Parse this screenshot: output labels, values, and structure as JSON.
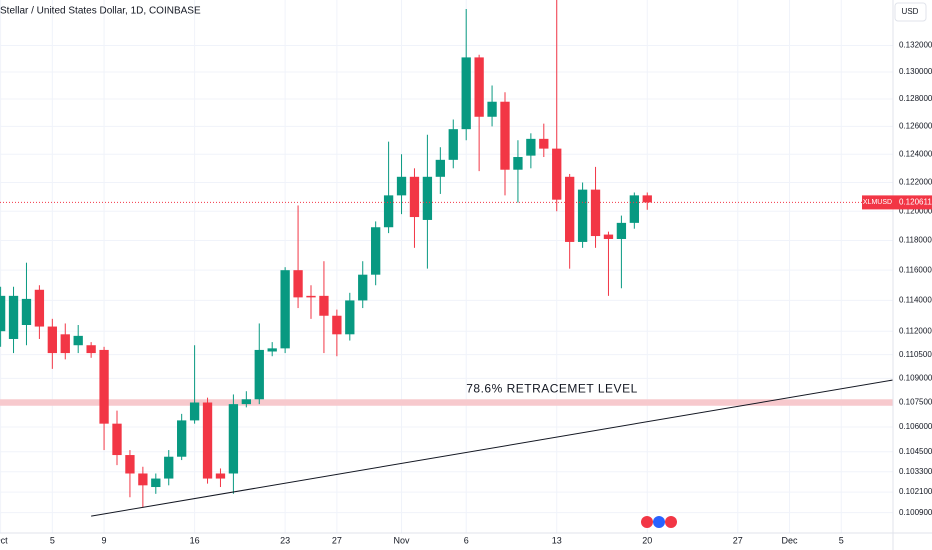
{
  "chart_data": {
    "type": "candlestick",
    "title": "Stellar / United States Dollar, 1D, COINBASE",
    "currency": "USD",
    "symbol": "XLMUSD",
    "log_scale": true,
    "grid": true,
    "up_color": "#089981",
    "down_color": "#f23645",
    "x": [
      "Oct 1",
      "Oct 2",
      "Oct 3",
      "Oct 4",
      "Oct 5",
      "Oct 6",
      "Oct 7",
      "Oct 8",
      "Oct 9",
      "Oct 10",
      "Oct 11",
      "Oct 12",
      "Oct 13",
      "Oct 14",
      "Oct 15",
      "Oct 16",
      "Oct 17",
      "Oct 18",
      "Oct 19",
      "Oct 20",
      "Oct 21",
      "Oct 22",
      "Oct 23",
      "Oct 24",
      "Oct 25",
      "Oct 26",
      "Oct 27",
      "Oct 28",
      "Oct 29",
      "Oct 30",
      "Oct 31",
      "Nov 1",
      "Nov 2",
      "Nov 3",
      "Nov 4",
      "Nov 5",
      "Nov 6",
      "Nov 7",
      "Nov 8",
      "Nov 9",
      "Nov 10",
      "Nov 11",
      "Nov 12",
      "Nov 13",
      "Nov 14",
      "Nov 15",
      "Nov 16",
      "Nov 17",
      "Nov 18",
      "Nov 19",
      "Nov 20"
    ],
    "open": [
      0.112,
      0.1115,
      0.1124,
      0.1147,
      0.1123,
      0.1118,
      0.1111,
      0.1111,
      0.1108,
      0.1062,
      0.1043,
      0.1032,
      0.1024,
      0.1029,
      0.1042,
      0.1064,
      0.1075,
      0.1032,
      0.1032,
      0.1074,
      0.1077,
      0.1107,
      0.1109,
      0.116,
      0.1143,
      0.1143,
      0.113,
      0.1118,
      0.114,
      0.1157,
      0.1189,
      0.1211,
      0.1224,
      0.1194,
      0.1224,
      0.1236,
      0.1258,
      0.1311,
      0.1267,
      0.1278,
      0.1229,
      0.1239,
      0.1251,
      0.1244,
      0.1224,
      0.1179,
      0.1215,
      0.1184,
      0.1181,
      0.1192,
      0.1211
    ],
    "high": [
      0.1149,
      0.1149,
      0.1165,
      0.115,
      0.1128,
      0.1125,
      0.1124,
      0.1113,
      0.111,
      0.107,
      0.1046,
      0.1036,
      0.1032,
      0.1046,
      0.1068,
      0.1111,
      0.1078,
      0.1035,
      0.108,
      0.1082,
      0.1125,
      0.1113,
      0.1162,
      0.1204,
      0.115,
      0.1166,
      0.1134,
      0.1145,
      0.1166,
      0.1193,
      0.1249,
      0.124,
      0.123,
      0.1254,
      0.1245,
      0.1265,
      0.1348,
      0.1313,
      0.129,
      0.1285,
      0.125,
      0.1255,
      0.1262,
      0.1355,
      0.1226,
      0.122,
      0.1231,
      0.1186,
      0.1197,
      0.1213,
      0.1213
    ],
    "low": [
      0.111,
      0.1106,
      0.1111,
      0.1115,
      0.1096,
      0.1102,
      0.1106,
      0.1103,
      0.1046,
      0.1037,
      0.1018,
      0.1012,
      0.102,
      0.1025,
      0.104,
      0.1062,
      0.1026,
      0.1024,
      0.102,
      0.1072,
      0.1074,
      0.1104,
      0.1106,
      0.1135,
      0.1128,
      0.1106,
      0.1104,
      0.1114,
      0.1135,
      0.115,
      0.1185,
      0.1198,
      0.1175,
      0.1161,
      0.1212,
      0.123,
      0.125,
      0.1228,
      0.126,
      0.1211,
      0.1206,
      0.123,
      0.1238,
      0.12,
      0.1161,
      0.1175,
      0.1175,
      0.1143,
      0.1148,
      0.1188,
      0.1201
    ],
    "close": [
      0.1143,
      0.1143,
      0.1141,
      0.1123,
      0.1106,
      0.1106,
      0.1117,
      0.1106,
      0.1062,
      0.1043,
      0.1032,
      0.1025,
      0.1029,
      0.1042,
      0.1064,
      0.1075,
      0.1029,
      0.1029,
      0.1074,
      0.1077,
      0.1108,
      0.1109,
      0.116,
      0.1142,
      0.1142,
      0.113,
      0.1118,
      0.114,
      0.1157,
      0.1189,
      0.1211,
      0.1224,
      0.1196,
      0.1224,
      0.1236,
      0.1258,
      0.1311,
      0.1267,
      0.1278,
      0.1229,
      0.1238,
      0.1251,
      0.1244,
      0.1208,
      0.1179,
      0.1215,
      0.1183,
      0.1181,
      0.1192,
      0.1211,
      0.120611
    ],
    "xlim": [
      "Oct 1",
      "Dec 9"
    ],
    "xticks": [
      {
        "value": "Oct 1",
        "label": "Oct"
      },
      {
        "value": "Oct 5",
        "label": "5"
      },
      {
        "value": "Oct 9",
        "label": "9"
      },
      {
        "value": "Oct 16",
        "label": "16"
      },
      {
        "value": "Oct 23",
        "label": "23"
      },
      {
        "value": "Oct 27",
        "label": "27"
      },
      {
        "value": "Nov 1",
        "label": "Nov"
      },
      {
        "value": "Nov 6",
        "label": "6"
      },
      {
        "value": "Nov 13",
        "label": "13"
      },
      {
        "value": "Nov 20",
        "label": "20"
      },
      {
        "value": "Nov 27",
        "label": "27"
      },
      {
        "value": "Dec 1",
        "label": "Dec"
      },
      {
        "value": "Dec 5",
        "label": "5"
      }
    ],
    "ylim": [
      0.0999,
      0.1355
    ],
    "yticks": [
      {
        "value": 0.132,
        "label": "0.132000"
      },
      {
        "value": 0.13,
        "label": "0.130000"
      },
      {
        "value": 0.128,
        "label": "0.128000"
      },
      {
        "value": 0.126,
        "label": "0.126000"
      },
      {
        "value": 0.124,
        "label": "0.124000"
      },
      {
        "value": 0.122,
        "label": "0.122000"
      },
      {
        "value": 0.12,
        "label": "0.120000"
      },
      {
        "value": 0.118,
        "label": "0.118000"
      },
      {
        "value": 0.116,
        "label": "0.116000"
      },
      {
        "value": 0.114,
        "label": "0.114000"
      },
      {
        "value": 0.112,
        "label": "0.112000"
      },
      {
        "value": 0.1105,
        "label": "0.110500"
      },
      {
        "value": 0.109,
        "label": "0.109000"
      },
      {
        "value": 0.1075,
        "label": "0.107500"
      },
      {
        "value": 0.106,
        "label": "0.106000"
      },
      {
        "value": 0.1045,
        "label": "0.104500"
      },
      {
        "value": 0.1033,
        "label": "0.103300"
      },
      {
        "value": 0.1021,
        "label": "0.102100"
      },
      {
        "value": 0.1009,
        "label": "0.100900"
      }
    ],
    "retracement": {
      "label": "78.6% RETRACEMET LEVEL",
      "low": 0.1073,
      "high": 0.1077
    },
    "trendline": {
      "x": [
        "Oct 8",
        "Dec 9"
      ],
      "y": [
        0.1007,
        0.1089
      ]
    }
  }
}
